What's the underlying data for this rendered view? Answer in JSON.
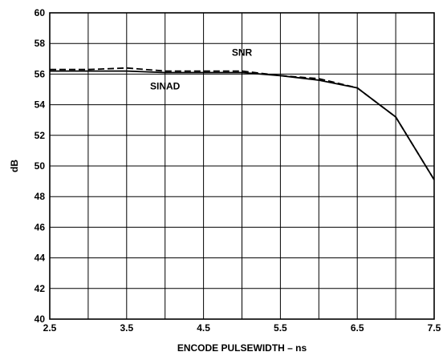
{
  "chart_data": {
    "type": "line",
    "title": "",
    "xlabel": "ENCODE PULSEWIDTH – ns",
    "ylabel": "dB",
    "xlim": [
      2.5,
      7.5
    ],
    "ylim": [
      40,
      60
    ],
    "grid": true,
    "x_gridlines": [
      2.5,
      3.0,
      3.5,
      4.0,
      4.5,
      5.0,
      5.5,
      6.0,
      6.5,
      7.0,
      7.5
    ],
    "x_ticks": [
      "2.5",
      "3.5",
      "4.5",
      "5.5",
      "6.5",
      "7.5"
    ],
    "y_ticks": [
      "40",
      "42",
      "44",
      "46",
      "48",
      "50",
      "52",
      "54",
      "56",
      "58",
      "60"
    ],
    "series": [
      {
        "name": "SNR",
        "style": "dashed",
        "color": "#000000",
        "x": [
          2.5,
          3.0,
          3.5,
          4.0,
          4.5,
          5.0,
          5.5,
          6.0,
          6.5,
          7.0,
          7.5
        ],
        "y": [
          56.3,
          56.3,
          56.4,
          56.2,
          56.2,
          56.2,
          55.9,
          55.7,
          55.1,
          53.2,
          49.1
        ]
      },
      {
        "name": "SINAD",
        "style": "solid",
        "color": "#000000",
        "x": [
          2.5,
          3.0,
          3.5,
          4.0,
          4.5,
          5.0,
          5.5,
          6.0,
          6.5,
          7.0,
          7.5
        ],
        "y": [
          56.2,
          56.2,
          56.2,
          56.1,
          56.1,
          56.1,
          55.9,
          55.6,
          55.1,
          53.2,
          49.1
        ]
      }
    ],
    "annotations": [
      {
        "text": "SNR",
        "x": 5.0,
        "y": 57.2
      },
      {
        "text": "SINAD",
        "x": 4.0,
        "y": 55.0
      }
    ]
  }
}
